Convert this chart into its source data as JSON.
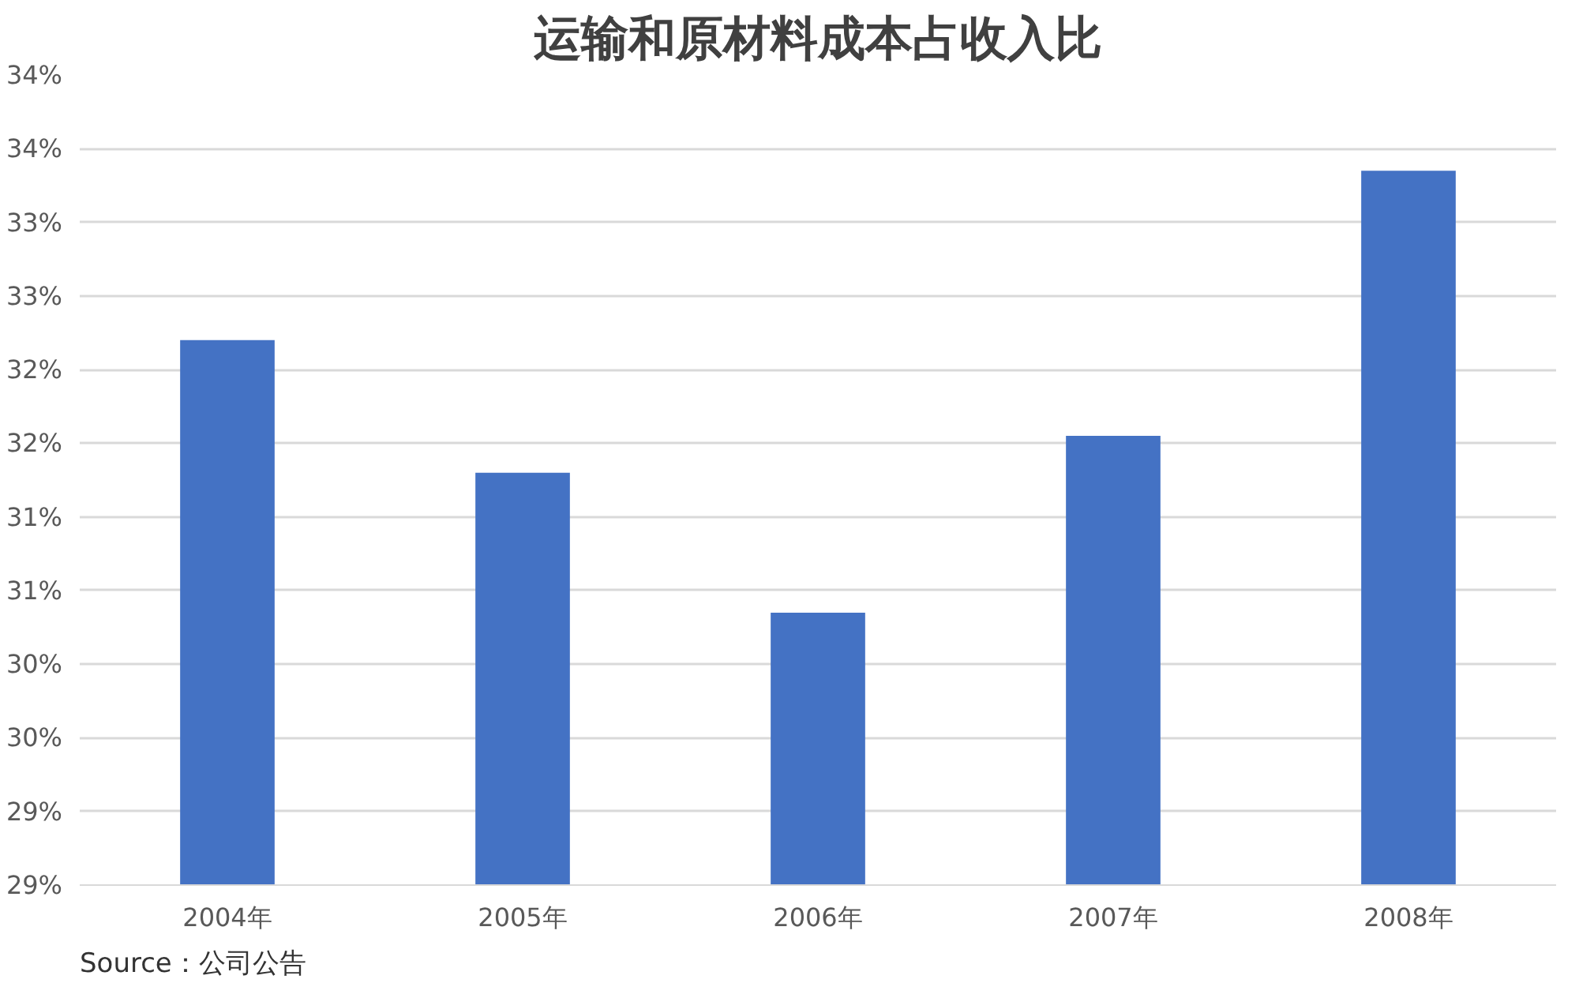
{
  "chart_data": {
    "type": "bar",
    "title": "运输和原材料成本占收入比",
    "categories": [
      "2004年",
      "2005年",
      "2006年",
      "2007年",
      "2008年"
    ],
    "values": [
      32.2,
      31.3,
      30.35,
      31.55,
      33.35
    ],
    "color": "#4472c4",
    "ylim": [
      28.5,
      34
    ],
    "yticks": [
      {
        "value": 28.5,
        "label": "29%"
      },
      {
        "value": 29,
        "label": "29%"
      },
      {
        "value": 29.5,
        "label": "30%"
      },
      {
        "value": 30,
        "label": "30%"
      },
      {
        "value": 30.5,
        "label": "31%"
      },
      {
        "value": 31,
        "label": "31%"
      },
      {
        "value": 31.5,
        "label": "32%"
      },
      {
        "value": 32,
        "label": "32%"
      },
      {
        "value": 32.5,
        "label": "33%"
      },
      {
        "value": 33,
        "label": "33%"
      },
      {
        "value": 33.5,
        "label": "34%"
      },
      {
        "value": 34,
        "label": "34%"
      }
    ],
    "grid": "y",
    "annotations": [
      "Source：公司公告"
    ]
  }
}
